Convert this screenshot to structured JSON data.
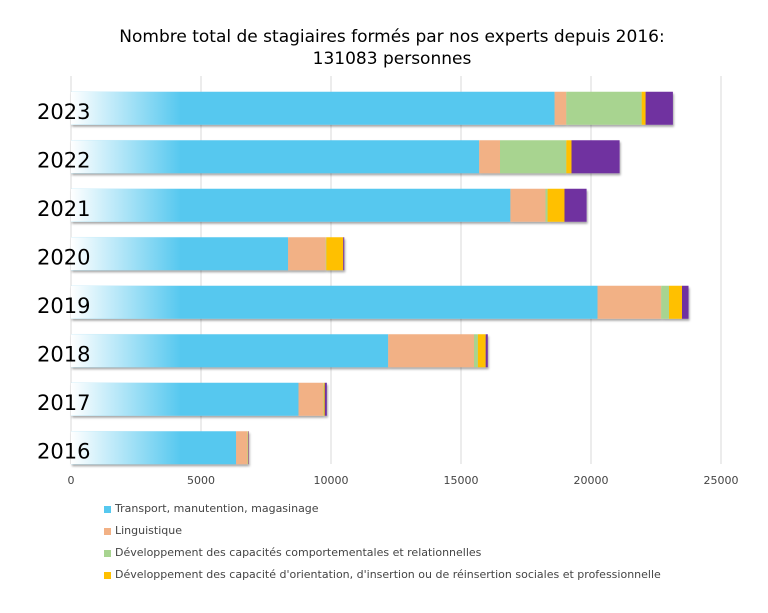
{
  "chart_data": {
    "type": "bar",
    "orientation": "horizontal",
    "stacked": true,
    "title": "Nombre total de stagiaires formés par nos experts depuis 2016:",
    "subtitle": "131083 personnes",
    "categories": [
      "2023",
      "2022",
      "2021",
      "2020",
      "2019",
      "2018",
      "2017",
      "2016"
    ],
    "xlim": [
      0,
      25000
    ],
    "x_ticks": [
      "0",
      "5000",
      "10000",
      "15000",
      "20000",
      "25000"
    ],
    "grid": true,
    "legend_position": "bottom",
    "series": [
      {
        "name": "Transport, manutention, magasinage",
        "color": "#56C8EF",
        "values": [
          18600,
          15700,
          16900,
          8350,
          20250,
          12200,
          8750,
          6350
        ]
      },
      {
        "name": "Linguistique",
        "color": "#F2B185",
        "values": [
          450,
          800,
          1350,
          1450,
          2450,
          3300,
          950,
          430
        ]
      },
      {
        "name": "Développement des capacités comportementales et relationnelles",
        "color": "#A8D490",
        "values": [
          2900,
          2550,
          80,
          20,
          300,
          150,
          20,
          20
        ]
      },
      {
        "name": "Développement des capacité d'orientation, d'insertion ou de réinsertion sociales et professionnelle",
        "color": "#FFC000",
        "values": [
          150,
          200,
          650,
          650,
          500,
          300,
          40,
          20
        ]
      },
      {
        "name": "",
        "color": "#7030A0",
        "values": [
          1050,
          1850,
          850,
          40,
          250,
          80,
          80,
          20
        ]
      }
    ]
  }
}
